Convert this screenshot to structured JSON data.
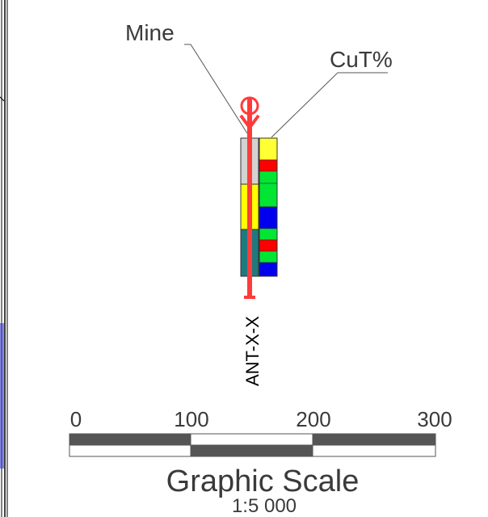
{
  "labels": {
    "mine": "Mine",
    "cut": "CuT%",
    "hole_id": "ANT-X-X"
  },
  "scale": {
    "ticks": [
      "0",
      "100",
      "200",
      "300"
    ],
    "title": "Graphic Scale",
    "ratio": "1:5 000"
  },
  "colors": {
    "trace": "#ff3b3b",
    "scale_dark": "#555555",
    "grade_yellow": "#ffff33",
    "grade_red": "#ff0000",
    "grade_green": "#00e633",
    "grade_blue": "#0000ee",
    "mine_grey": "#d3d3d3",
    "mine_yellow": "#ffff00",
    "mine_teal": "#1f7a80"
  },
  "mine_column": [
    "mine_grey",
    "mine_yellow",
    "mine_teal"
  ],
  "cut_column": [
    "grade_yellow",
    "grade_red",
    "grade_green",
    "grade_green",
    "grade_blue",
    "grade_green",
    "grade_red",
    "grade_green",
    "grade_blue"
  ]
}
